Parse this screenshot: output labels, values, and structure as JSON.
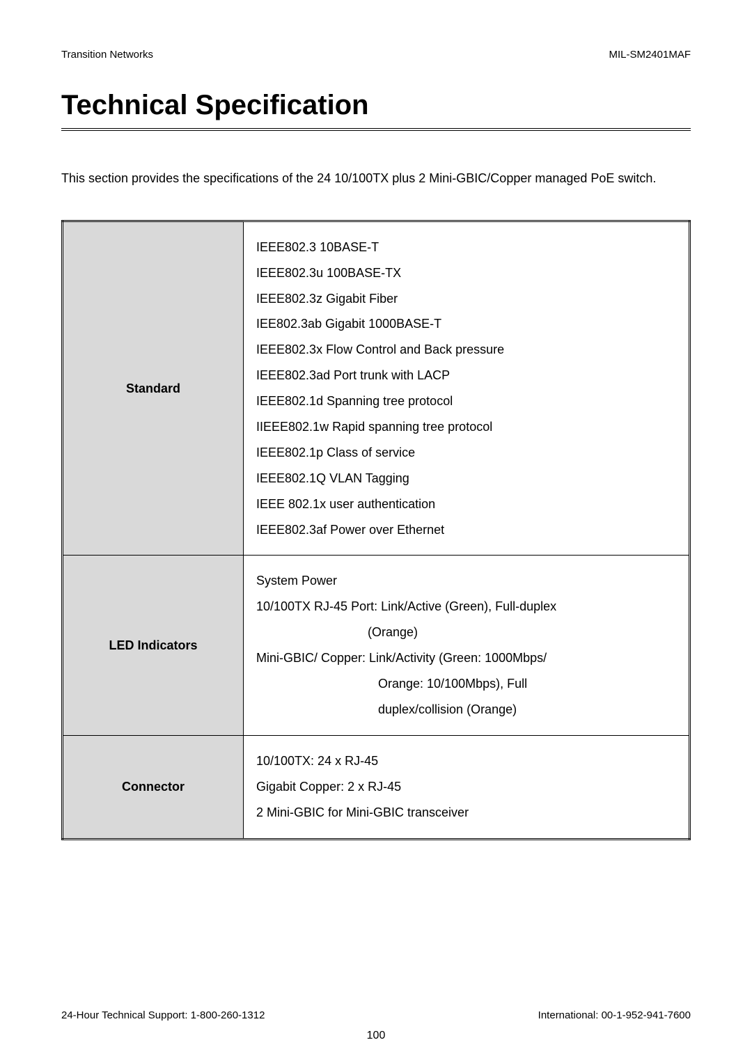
{
  "header": {
    "left": "Transition Networks",
    "right": "MIL-SM2401MAF"
  },
  "title": "Technical Specification",
  "intro": "This section provides the specifications of the 24 10/100TX plus 2 Mini-GBIC/Copper managed PoE switch.",
  "table": {
    "label_bg": "#d9d9d9",
    "border_color": "#000000",
    "rows": [
      {
        "label": "Standard",
        "lines": [
          "IEEE802.3 10BASE-T",
          "IEEE802.3u 100BASE-TX",
          "IEEE802.3z Gigabit Fiber",
          "IEE802.3ab Gigabit 1000BASE-T",
          "IEEE802.3x Flow Control and Back pressure",
          "IEEE802.3ad Port trunk with LACP",
          "IEEE802.1d Spanning tree protocol",
          "IIEEE802.1w Rapid spanning tree protocol",
          "IEEE802.1p Class of service",
          "IEEE802.1Q VLAN Tagging",
          "IEEE 802.1x user authentication",
          "IEEE802.3af Power over Ethernet"
        ]
      },
      {
        "label": "LED Indicators",
        "lines": [
          "System Power",
          "10/100TX RJ-45 Port: Link/Active (Green), Full-duplex",
          "(Orange)",
          "Mini-GBIC/ Copper: Link/Activity (Green: 1000Mbps/",
          "Orange: 10/100Mbps), Full",
          "duplex/collision (Orange)"
        ],
        "indents": [
          0,
          0,
          1,
          0,
          2,
          2
        ]
      },
      {
        "label": "Connector",
        "lines": [
          "10/100TX: 24 x RJ-45",
          "Gigabit Copper: 2 x RJ-45",
          "2 Mini-GBIC for Mini-GBIC transceiver"
        ]
      }
    ]
  },
  "footer": {
    "left": "24-Hour Technical Support: 1-800-260-1312",
    "right": "International: 00-1-952-941-7600"
  },
  "page_number": "100",
  "typography": {
    "title_fontsize": 40,
    "body_fontsize": 18,
    "header_fontsize": 15
  },
  "colors": {
    "text": "#000000",
    "background": "#ffffff",
    "table_label_bg": "#d9d9d9"
  }
}
